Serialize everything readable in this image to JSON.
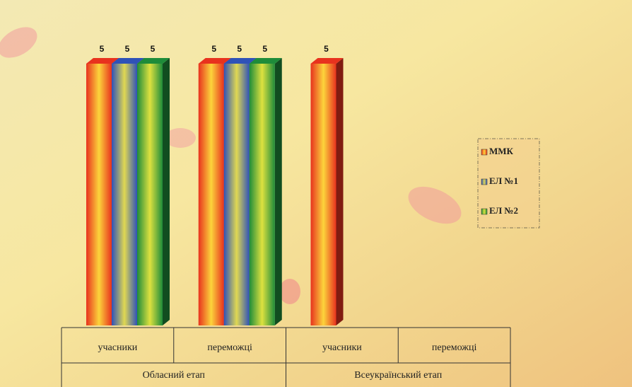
{
  "chart_data": {
    "type": "bar3d",
    "groups": [
      {
        "name": "Обласний етап",
        "categories": [
          "учасники",
          "переможці"
        ]
      },
      {
        "name": "Всеукраїнський етап",
        "categories": [
          "учасники",
          "переможці"
        ]
      }
    ],
    "series": [
      {
        "name": "ММК",
        "color": "#e8321e",
        "values": [
          5,
          5,
          5,
          null
        ]
      },
      {
        "name": "ЕЛ №1",
        "color": "#2f52b8",
        "values": [
          5,
          5,
          null,
          null
        ]
      },
      {
        "name": "ЕЛ №2",
        "color": "#1e8c3a",
        "values": [
          5,
          5,
          null,
          null
        ]
      }
    ],
    "legend": "right"
  }
}
